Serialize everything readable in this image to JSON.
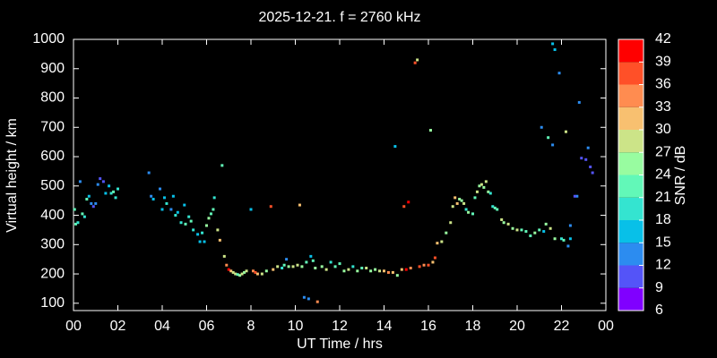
{
  "chart_data": {
    "type": "scatter",
    "title": "2025-12-21. f = 2760 kHz",
    "x_label": "UT Time / hrs",
    "y_label": "Virtual height / km",
    "xlim": [
      0,
      24
    ],
    "ylim": [
      75,
      1000
    ],
    "xticks": [
      {
        "value": 0,
        "label": "00"
      },
      {
        "value": 2,
        "label": "02"
      },
      {
        "value": 4,
        "label": "04"
      },
      {
        "value": 6,
        "label": "06"
      },
      8,
      10,
      12,
      14,
      16,
      18,
      20,
      22,
      {
        "value": 24,
        "label": "00"
      }
    ],
    "yticks": [
      100,
      200,
      300,
      400,
      500,
      600,
      700,
      800,
      900,
      1000
    ],
    "x": [
      0.05,
      0.1,
      0.2,
      0.3,
      0.4,
      0.5,
      0.6,
      0.7,
      0.8,
      0.9,
      1.0,
      1.1,
      1.2,
      1.35,
      1.45,
      1.6,
      1.7,
      1.8,
      1.9,
      2.0,
      3.4,
      3.5,
      3.6,
      3.9,
      4.0,
      4.1,
      4.2,
      4.4,
      4.5,
      4.6,
      4.7,
      4.85,
      5.0,
      5.05,
      5.2,
      5.3,
      5.4,
      5.6,
      5.7,
      5.8,
      5.9,
      6.0,
      6.1,
      6.2,
      6.3,
      6.35,
      6.5,
      6.6,
      6.7,
      6.8,
      6.9,
      7.0,
      7.1,
      7.2,
      7.3,
      7.4,
      7.5,
      7.6,
      7.7,
      7.8,
      8.0,
      8.1,
      8.2,
      8.3,
      8.5,
      8.7,
      8.9,
      9.0,
      9.2,
      9.4,
      9.5,
      9.6,
      9.7,
      9.9,
      10.1,
      10.2,
      10.3,
      10.4,
      10.5,
      10.6,
      10.7,
      10.8,
      10.9,
      11.0,
      11.2,
      11.4,
      11.6,
      11.8,
      12.0,
      12.2,
      12.4,
      12.6,
      12.8,
      13.0,
      13.2,
      13.4,
      13.6,
      13.8,
      14.0,
      14.2,
      14.4,
      14.6,
      14.5,
      14.8,
      14.9,
      15.1,
      15.0,
      15.2,
      15.4,
      15.5,
      15.6,
      15.8,
      16.0,
      16.1,
      16.2,
      16.3,
      16.4,
      16.6,
      16.8,
      17.0,
      17.1,
      17.2,
      17.3,
      17.4,
      17.5,
      17.6,
      17.7,
      17.8,
      18.0,
      18.1,
      18.2,
      18.3,
      18.4,
      18.5,
      18.6,
      18.7,
      18.8,
      18.9,
      19.0,
      19.1,
      19.3,
      19.4,
      19.6,
      19.8,
      20.0,
      20.2,
      20.4,
      20.6,
      20.8,
      21.0,
      21.2,
      21.3,
      21.5,
      21.7,
      22.0,
      22.1,
      22.3,
      22.4,
      21.1,
      21.4,
      21.6,
      21.6,
      21.7,
      21.9,
      22.2,
      22.4,
      22.7,
      22.6,
      22.8,
      22.9,
      23.1,
      23.2,
      23.3,
      23.4
    ],
    "values": [
      420,
      370,
      375,
      515,
      405,
      395,
      455,
      465,
      440,
      430,
      440,
      505,
      525,
      515,
      475,
      500,
      475,
      480,
      460,
      490,
      545,
      465,
      455,
      490,
      420,
      460,
      440,
      420,
      465,
      400,
      410,
      375,
      435,
      370,
      395,
      380,
      350,
      335,
      310,
      340,
      310,
      365,
      390,
      405,
      420,
      460,
      350,
      315,
      570,
      260,
      230,
      215,
      210,
      205,
      200,
      198,
      195,
      200,
      205,
      210,
      420,
      210,
      205,
      200,
      200,
      210,
      430,
      215,
      225,
      220,
      230,
      250,
      225,
      225,
      230,
      435,
      225,
      120,
      240,
      115,
      260,
      245,
      220,
      105,
      225,
      215,
      240,
      225,
      235,
      210,
      215,
      225,
      210,
      220,
      220,
      210,
      215,
      210,
      210,
      205,
      205,
      195,
      635,
      215,
      430,
      445,
      215,
      220,
      920,
      930,
      225,
      230,
      230,
      690,
      240,
      255,
      305,
      310,
      340,
      375,
      430,
      460,
      440,
      455,
      450,
      440,
      420,
      410,
      405,
      460,
      480,
      500,
      505,
      495,
      515,
      480,
      475,
      430,
      425,
      420,
      385,
      375,
      370,
      355,
      350,
      350,
      345,
      330,
      340,
      350,
      345,
      370,
      355,
      320,
      320,
      315,
      295,
      320,
      700,
      665,
      640,
      985,
      965,
      885,
      685,
      365,
      465,
      465,
      785,
      595,
      590,
      630,
      565,
      545
    ],
    "snr": [
      21,
      21,
      18,
      12,
      21,
      18,
      21,
      15,
      12,
      9,
      12,
      12,
      9,
      9,
      15,
      15,
      18,
      21,
      18,
      18,
      12,
      12,
      15,
      12,
      15,
      15,
      18,
      12,
      15,
      18,
      15,
      18,
      15,
      21,
      18,
      21,
      18,
      15,
      15,
      18,
      15,
      24,
      24,
      21,
      21,
      18,
      27,
      30,
      21,
      27,
      33,
      39,
      30,
      27,
      27,
      21,
      24,
      27,
      24,
      27,
      15,
      33,
      36,
      30,
      27,
      24,
      36,
      30,
      27,
      18,
      21,
      12,
      24,
      27,
      27,
      30,
      24,
      12,
      21,
      12,
      15,
      21,
      24,
      33,
      24,
      27,
      18,
      21,
      21,
      24,
      27,
      18,
      24,
      21,
      27,
      24,
      24,
      27,
      30,
      33,
      30,
      24,
      15,
      30,
      36,
      39,
      39,
      33,
      36,
      27,
      36,
      33,
      36,
      24,
      30,
      36,
      30,
      27,
      24,
      27,
      27,
      30,
      30,
      24,
      24,
      27,
      18,
      24,
      21,
      21,
      27,
      24,
      27,
      24,
      27,
      24,
      18,
      18,
      21,
      21,
      27,
      24,
      27,
      24,
      27,
      21,
      21,
      21,
      24,
      21,
      15,
      24,
      27,
      24,
      18,
      21,
      12,
      15,
      12,
      21,
      12,
      15,
      15,
      12,
      27,
      12,
      12,
      9,
      12,
      9,
      9,
      12,
      9,
      9
    ],
    "colorbar": {
      "label": "SNR / dB",
      "lim": [
        6,
        42
      ],
      "ticks": [
        6,
        9,
        12,
        15,
        18,
        21,
        24,
        27,
        30,
        33,
        36,
        39,
        42
      ],
      "colors": [
        "#8000ff",
        "#5454f8",
        "#2c8cf0",
        "#08c0e8",
        "#34e4d0",
        "#62f8b8",
        "#98fca0",
        "#cce488",
        "#f8c070",
        "#ff8c50",
        "#ff5028",
        "#ff0000"
      ]
    }
  }
}
